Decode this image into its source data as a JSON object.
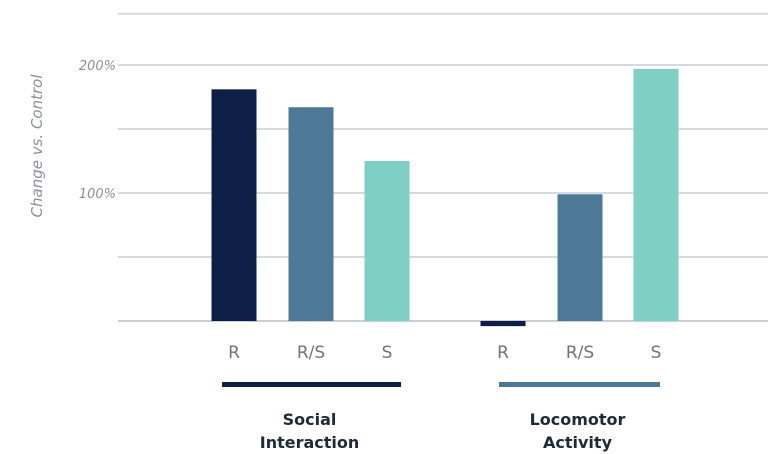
{
  "chart_data": {
    "type": "bar",
    "ylabel": "Change vs. Control",
    "yticks": [
      {
        "value": 100,
        "label": "100%"
      },
      {
        "value": 200,
        "label": "200%"
      }
    ],
    "ylim": [
      0,
      240
    ],
    "gridlines": [
      50,
      100,
      150,
      200,
      240
    ],
    "grid": true,
    "groups": [
      {
        "name_lines": [
          "Social",
          "Interaction"
        ],
        "underline_color": "#0d1f47",
        "categories": [
          "R",
          "R/S",
          "S"
        ],
        "values": [
          181,
          167,
          125
        ]
      },
      {
        "name_lines": [
          "Locomotor",
          "Activity"
        ],
        "underline_color": "#4d7896",
        "categories": [
          "R",
          "R/S",
          "S"
        ],
        "values": [
          -4,
          99,
          197
        ]
      }
    ],
    "colors": {
      "R": "#0d1f47",
      "R/S": "#4d7896",
      "S": "#7fcfc5"
    }
  }
}
